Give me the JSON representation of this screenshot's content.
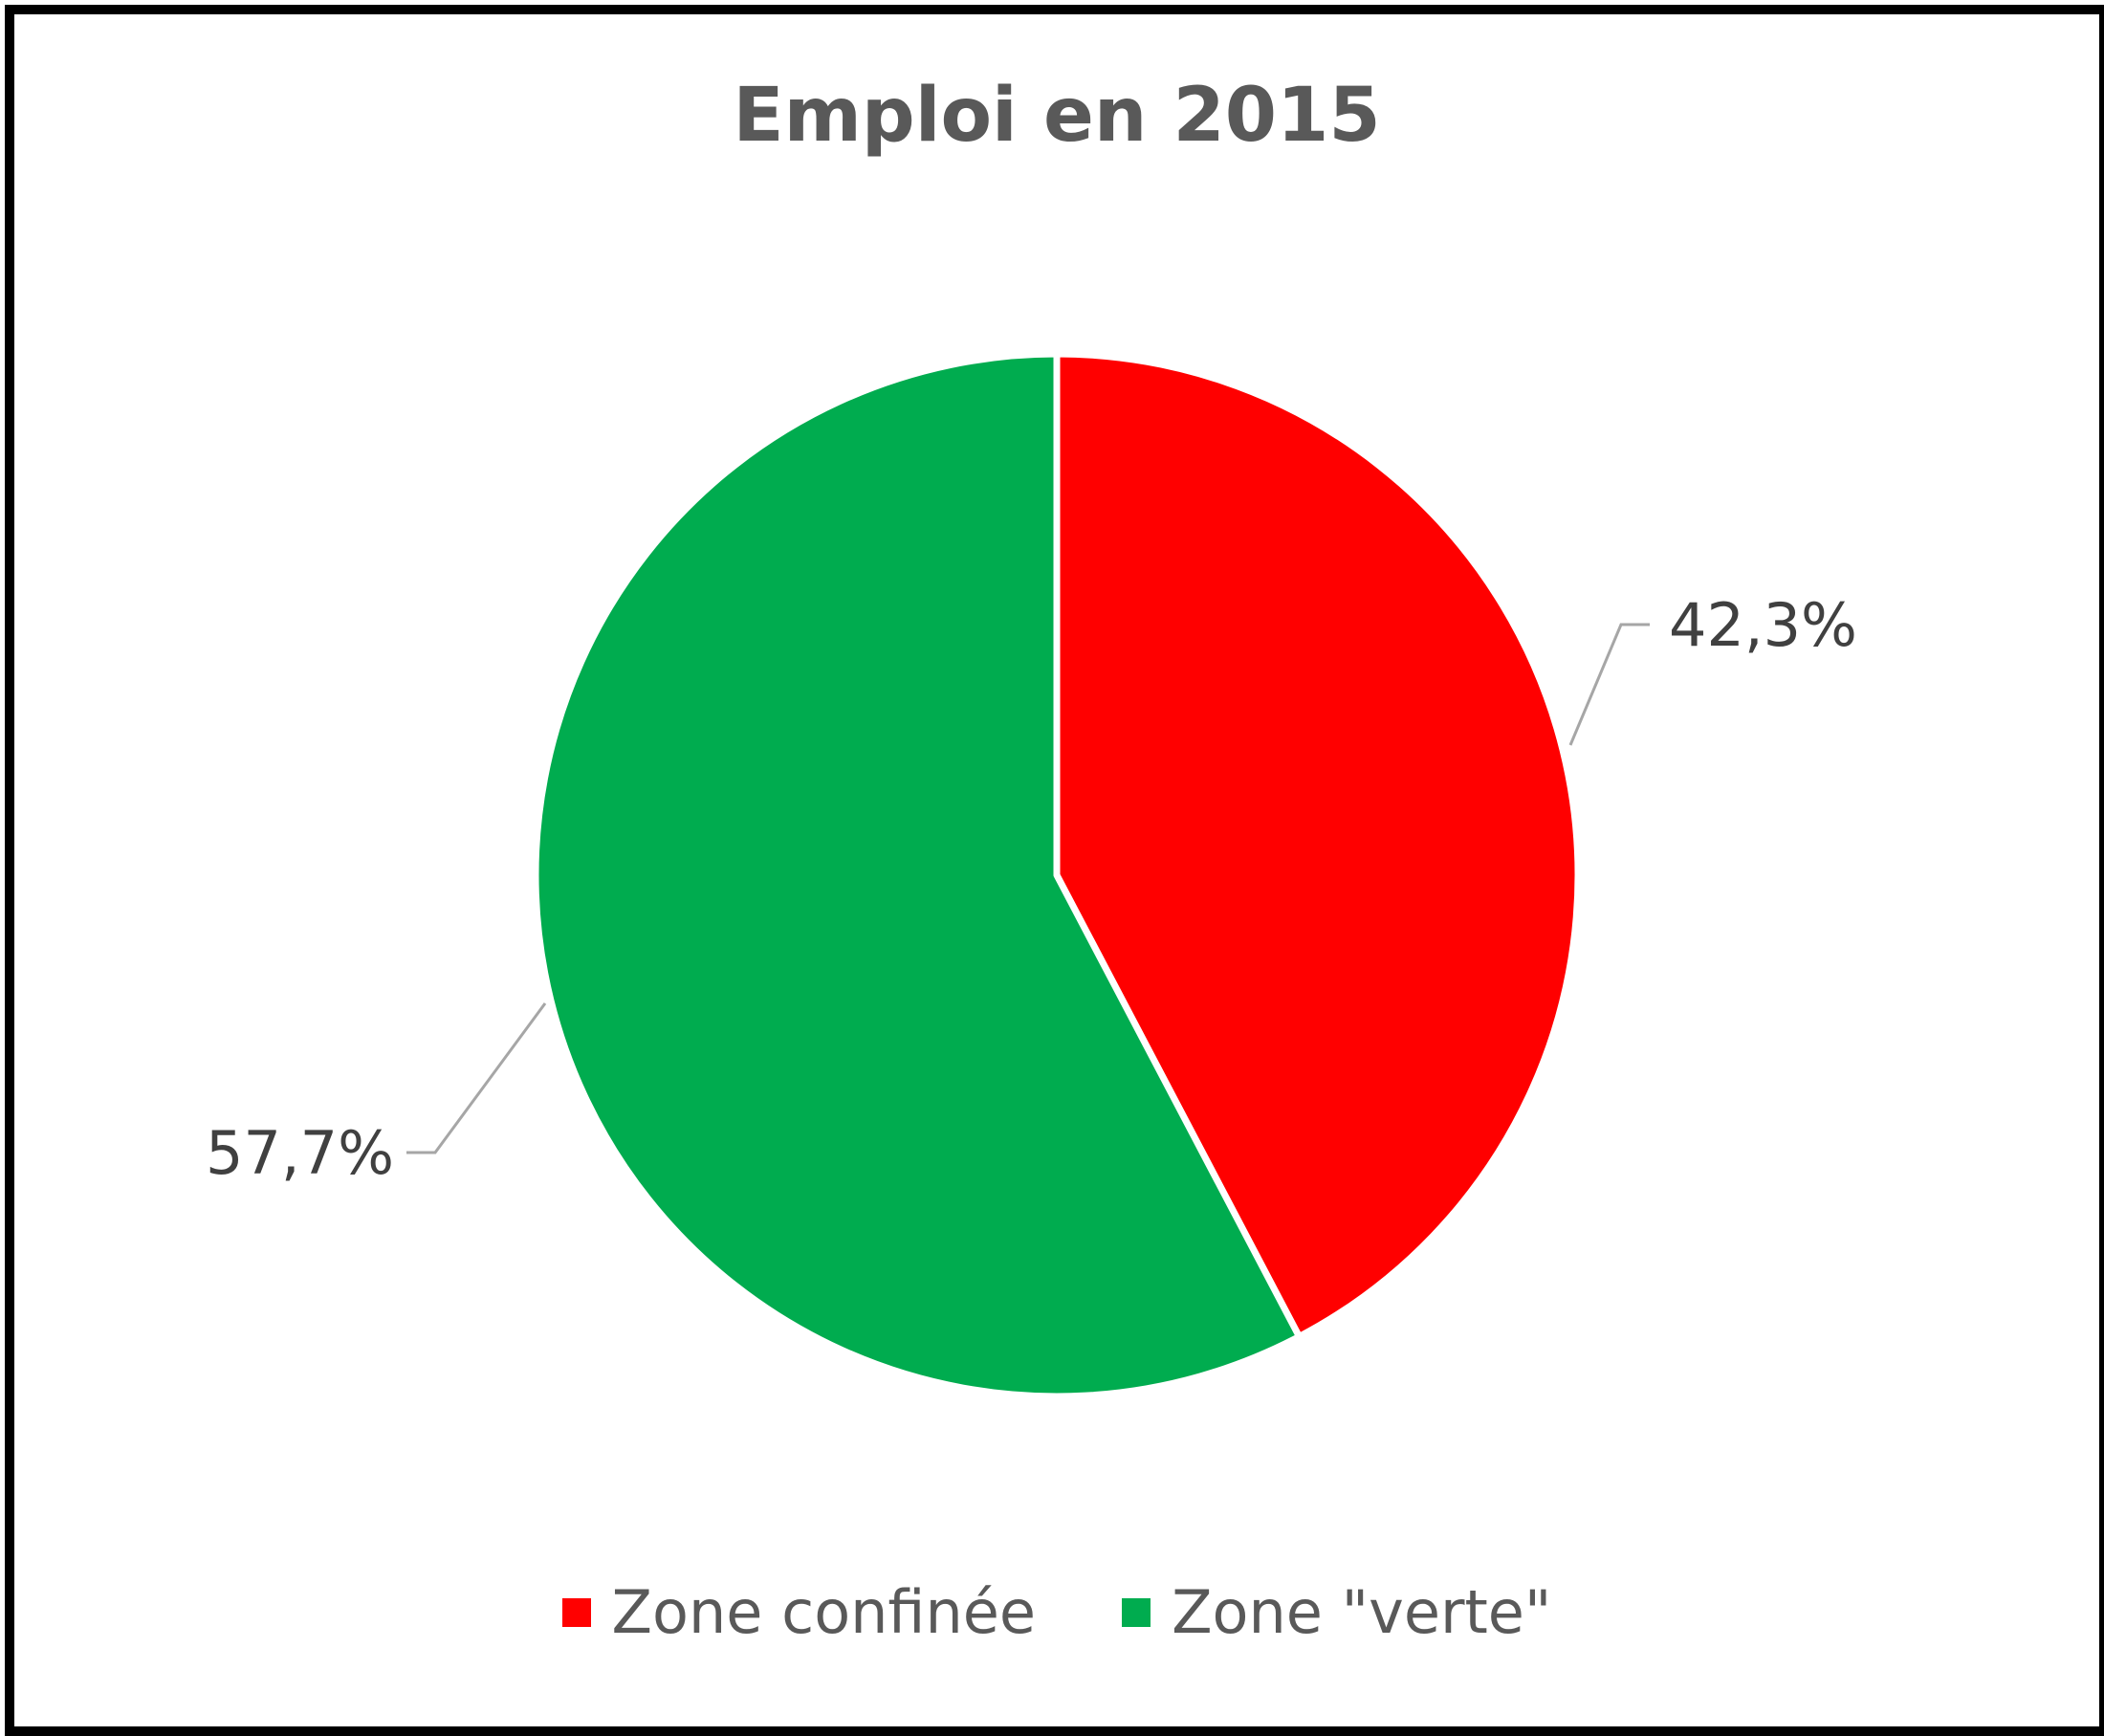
{
  "chart_data": {
    "type": "pie",
    "title": "Emploi en 2015",
    "categories": [
      "Zone confinée",
      "Zone \"verte\""
    ],
    "values": [
      42.3,
      57.7
    ],
    "labels": [
      "42,3%",
      "57,7%"
    ],
    "colors": [
      "#FF0000",
      "#00AC4F"
    ],
    "start_angle_deg": 0,
    "direction": "clockwise",
    "legend_position": "bottom"
  }
}
